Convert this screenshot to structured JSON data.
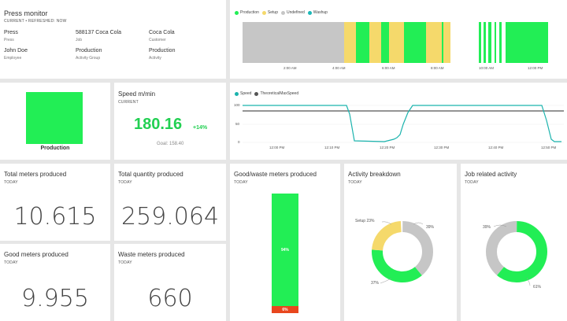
{
  "colors": {
    "production": "#22ee55",
    "setup": "#f5d96b",
    "undefined": "#c6c6c6",
    "washup": "#1cb8b8",
    "speed": "#1bb3ad",
    "theoretical": "#555555",
    "waste": "#e8471e"
  },
  "press_tile": {
    "title": "Press monitor",
    "subtitle": "CURRENT  •  REFRESHED: NOW",
    "fields": [
      {
        "value": "Press",
        "label": "Press"
      },
      {
        "value": "588137 Coca Cola",
        "label": "Job"
      },
      {
        "value": "Coca Cola",
        "label": "Customer"
      },
      {
        "value": "John Doe",
        "label": "Employee"
      },
      {
        "value": "Production",
        "label": "Activity Group"
      },
      {
        "value": "Production",
        "label": "Activity"
      }
    ]
  },
  "timeline": {
    "legend": [
      "Production",
      "Setup",
      "Undefined",
      "Washup"
    ],
    "ticks_left": [
      "2:00 AM",
      "4:00 AM",
      "6:00 AM",
      "8:00 AM"
    ],
    "ticks_right": [
      "10:00 AM",
      "12:00 PM"
    ]
  },
  "status_tile": {
    "label": "Production"
  },
  "speed_tile": {
    "title": "Speed m/min",
    "subtitle": "CURRENT",
    "value": "180.16",
    "delta": "+14%",
    "goal": "Goal: 158.40"
  },
  "speed_chart": {
    "legend": [
      "Speed",
      "TheoreticalMaxSpeed"
    ],
    "y_ticks": [
      "100",
      "50",
      "0"
    ],
    "x_ticks": [
      "12:00 PM",
      "12:10 PM",
      "12:20 PM",
      "12:30 PM",
      "12:40 PM",
      "12:50 PM"
    ]
  },
  "kpis": {
    "total_meters": {
      "title": "Total meters produced",
      "sub": "TODAY",
      "value": "10.615"
    },
    "total_quantity": {
      "title": "Total quantity produced",
      "sub": "TODAY",
      "value": "259.064"
    },
    "good_meters": {
      "title": "Good meters produced",
      "sub": "TODAY",
      "value": "9.955"
    },
    "waste_meters": {
      "title": "Waste meters produced",
      "sub": "TODAY",
      "value": "660"
    }
  },
  "goodwaste": {
    "title": "Good/waste meters produced",
    "sub": "TODAY",
    "good_label": "94%",
    "waste_label": "6%",
    "good_fraction": 0.94
  },
  "activity_breakdown": {
    "title": "Activity breakdown",
    "sub": "TODAY",
    "labels": [
      "Setup 23%",
      "39%",
      "37%"
    ],
    "fractions": {
      "undefined": 0.39,
      "production": 0.37,
      "setup": 0.23
    }
  },
  "job_activity": {
    "title": "Job related activity",
    "sub": "TODAY",
    "labels": [
      "39%",
      "61%"
    ],
    "fractions": {
      "production": 0.61,
      "undefined": 0.39
    }
  }
}
